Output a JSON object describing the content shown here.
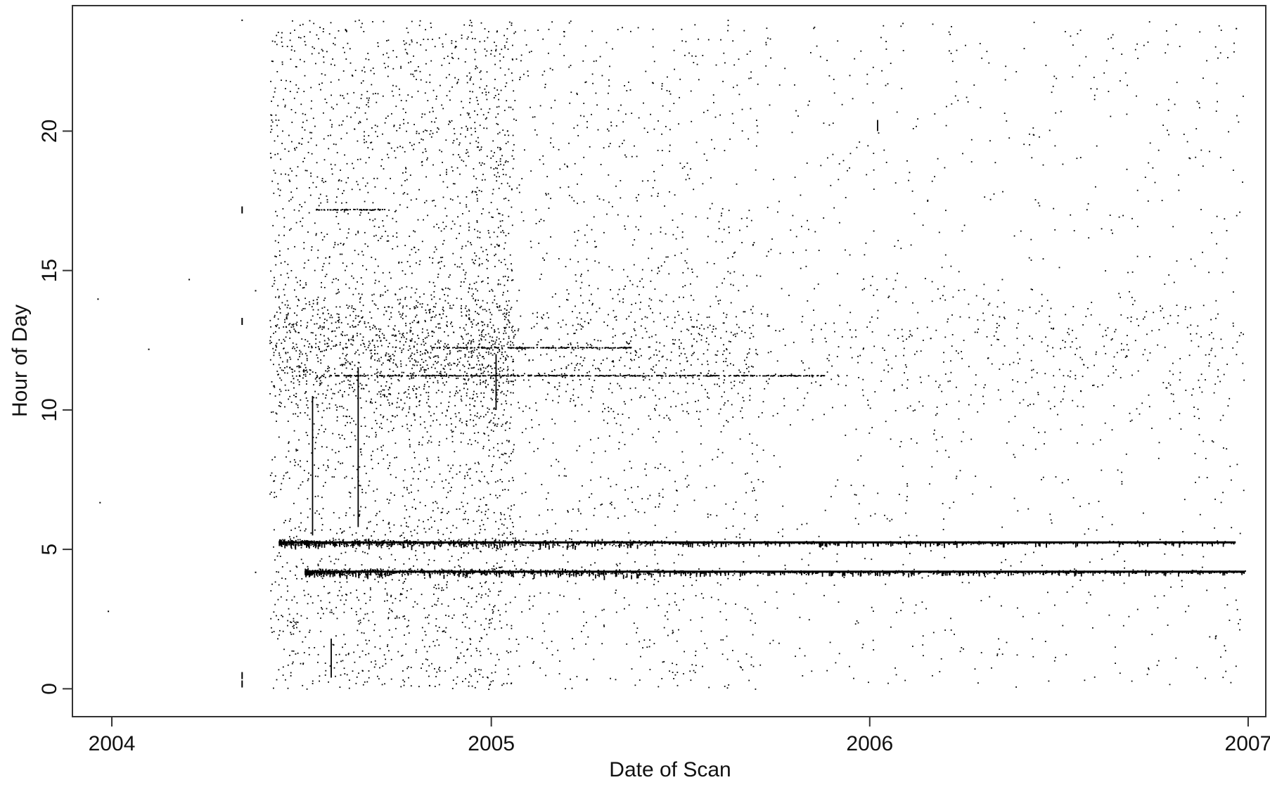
{
  "chart_data": {
    "type": "scatter",
    "title": "",
    "xlabel": "Date of Scan",
    "ylabel": "Hour of Day",
    "x_axis": {
      "scale": "date",
      "range": [
        "2003-11-24",
        "2007-01-18"
      ],
      "ticks": [
        {
          "value": "2004-01-01",
          "label": "2004"
        },
        {
          "value": "2005-01-01",
          "label": "2005"
        },
        {
          "value": "2006-01-01",
          "label": "2006"
        },
        {
          "value": "2007-01-01",
          "label": "2007"
        }
      ]
    },
    "y_axis": {
      "range": [
        -1,
        24.5
      ],
      "ticks": [
        0,
        5,
        10,
        15,
        20
      ]
    },
    "grid": false,
    "legend": "none",
    "marker_color": "#000000",
    "dense_bands": [
      {
        "hour": 5.25,
        "from": "2004-06-10",
        "to": "2006-12-20"
      },
      {
        "hour": 4.2,
        "from": "2004-07-05",
        "to": "2006-12-29"
      }
    ],
    "light_bands": [
      {
        "hour": 11.25,
        "from": "2004-07-20",
        "to": "2005-11-20"
      },
      {
        "hour": 12.25,
        "from": "2004-11-01",
        "to": "2005-05-15"
      },
      {
        "hour": 17.2,
        "from": "2004-07-15",
        "to": "2004-09-20"
      }
    ],
    "isolated_points": [
      {
        "x": "2003-12-18",
        "y": 14.0
      },
      {
        "x": "2003-12-20",
        "y": 6.7
      },
      {
        "x": "2003-12-28",
        "y": 2.8
      },
      {
        "x": "2004-02-05",
        "y": 12.2
      },
      {
        "x": "2004-03-15",
        "y": 14.7
      },
      {
        "x": "2004-05-05",
        "y": 24.0
      },
      {
        "x": "2004-05-05",
        "y": 17.3
      },
      {
        "x": "2004-05-05",
        "y": 13.3
      },
      {
        "x": "2004-05-05",
        "y": 0.6
      },
      {
        "x": "2004-05-05",
        "y": 0.3
      },
      {
        "x": "2004-05-18",
        "y": 14.3
      },
      {
        "x": "2004-05-18",
        "y": 4.2
      }
    ]
  }
}
